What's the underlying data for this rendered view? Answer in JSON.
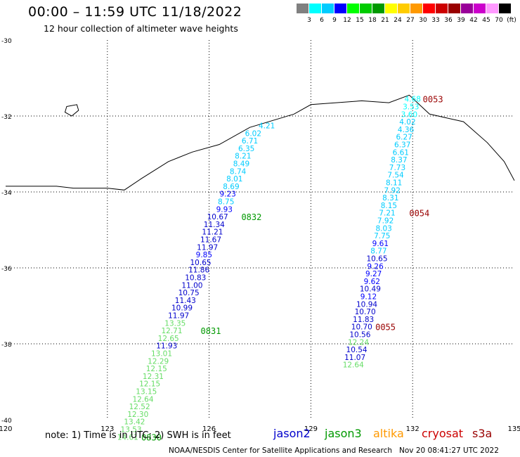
{
  "title": "00:00 – 11:59 UTC 11/18/2022",
  "subtitle": "12 hour collection of altimeter wave heights",
  "color_scale": {
    "colors": [
      "#808080",
      "#00ffff",
      "#00ccff",
      "#0000ff",
      "#00ff00",
      "#00cc00",
      "#009900",
      "#ffff00",
      "#ffcc00",
      "#ff9900",
      "#ff0000",
      "#cc0000",
      "#990000",
      "#990099",
      "#cc00cc",
      "#ff99ff",
      "#000000"
    ],
    "labels": [
      "3",
      "6",
      "9",
      "12",
      "15",
      "18",
      "21",
      "24",
      "27",
      "30",
      "33",
      "36",
      "39",
      "42",
      "45",
      "70"
    ],
    "unit": "(ft)"
  },
  "axes": {
    "lon_ticks": [
      "120",
      "123",
      "126",
      "129",
      "132",
      "135"
    ],
    "lat_ticks": [
      "-30",
      "-32",
      "-34",
      "-36",
      "-38",
      "-40"
    ]
  },
  "coastline": [
    [
      120,
      -33.85
    ],
    [
      121.5,
      -33.85
    ],
    [
      122,
      -33.9
    ],
    [
      123,
      -33.9
    ],
    [
      123.5,
      -33.95
    ],
    [
      124,
      -33.65
    ],
    [
      124.8,
      -33.2
    ],
    [
      125.5,
      -32.95
    ],
    [
      126.3,
      -32.75
    ],
    [
      127.2,
      -32.3
    ],
    [
      128.5,
      -31.95
    ],
    [
      129,
      -31.7
    ],
    [
      130.5,
      -31.6
    ],
    [
      131.3,
      -31.65
    ],
    [
      131.9,
      -31.45
    ],
    [
      132.5,
      -31.95
    ],
    [
      133.5,
      -32.15
    ],
    [
      134.2,
      -32.7
    ],
    [
      134.7,
      -33.2
    ],
    [
      135,
      -33.7
    ]
  ],
  "island": [
    [
      121.8,
      -31.75
    ],
    [
      122.1,
      -31.7
    ],
    [
      122.15,
      -31.85
    ],
    [
      121.95,
      -32
    ],
    [
      121.75,
      -31.9
    ]
  ],
  "tracks": [
    {
      "name": "jason3",
      "points": [
        {
          "lon": 127.7,
          "lat": -32.25,
          "v": "4.21",
          "c": "#00ccff"
        },
        {
          "lon": 127.3,
          "lat": -32.45,
          "v": "6.02",
          "c": "#00ccff"
        },
        {
          "lon": 127.2,
          "lat": -32.65,
          "v": "6.71",
          "c": "#00ccff"
        },
        {
          "lon": 127.1,
          "lat": -32.85,
          "v": "6.35",
          "c": "#00ccff"
        },
        {
          "lon": 127.0,
          "lat": -33.05,
          "v": "8.21",
          "c": "#00ccff"
        },
        {
          "lon": 126.95,
          "lat": -33.25,
          "v": "8.49",
          "c": "#00ccff"
        },
        {
          "lon": 126.85,
          "lat": -33.45,
          "v": "8.74",
          "c": "#00ccff"
        },
        {
          "lon": 126.75,
          "lat": -33.65,
          "v": "8.01",
          "c": "#00ccff"
        },
        {
          "lon": 126.65,
          "lat": -33.85,
          "v": "8.69",
          "c": "#00ccff"
        },
        {
          "lon": 126.55,
          "lat": -34.05,
          "v": "9.23",
          "c": "#0000ff"
        },
        {
          "lon": 126.5,
          "lat": -34.25,
          "v": "8.75",
          "c": "#00ccff"
        },
        {
          "lon": 126.45,
          "lat": -34.45,
          "v": "9.93",
          "c": "#0000ff"
        },
        {
          "lon": 126.25,
          "lat": -34.65,
          "v": "10.67",
          "c": "#0000cc"
        },
        {
          "lon": 126.15,
          "lat": -34.85,
          "v": "11.34",
          "c": "#0000cc"
        },
        {
          "lon": 126.1,
          "lat": -35.05,
          "v": "11.21",
          "c": "#0000cc"
        },
        {
          "lon": 126.05,
          "lat": -35.25,
          "v": "11.67",
          "c": "#0000cc"
        },
        {
          "lon": 125.95,
          "lat": -35.45,
          "v": "11.97",
          "c": "#0000cc"
        },
        {
          "lon": 125.85,
          "lat": -35.65,
          "v": "9.85",
          "c": "#0000ff"
        },
        {
          "lon": 125.75,
          "lat": -35.85,
          "v": "10.65",
          "c": "#0000cc"
        },
        {
          "lon": 125.7,
          "lat": -36.05,
          "v": "11.86",
          "c": "#0000cc"
        },
        {
          "lon": 125.6,
          "lat": -36.25,
          "v": "10.83",
          "c": "#0000cc"
        },
        {
          "lon": 125.5,
          "lat": -36.45,
          "v": "11.00",
          "c": "#0000cc"
        },
        {
          "lon": 125.4,
          "lat": -36.65,
          "v": "10.75",
          "c": "#0000cc"
        },
        {
          "lon": 125.3,
          "lat": -36.85,
          "v": "11.43",
          "c": "#0000cc"
        },
        {
          "lon": 125.2,
          "lat": -37.05,
          "v": "10.99",
          "c": "#0000cc"
        },
        {
          "lon": 125.1,
          "lat": -37.25,
          "v": "11.97",
          "c": "#0000cc"
        },
        {
          "lon": 125.0,
          "lat": -37.45,
          "v": "13.35",
          "c": "#66dd66"
        },
        {
          "lon": 124.9,
          "lat": -37.65,
          "v": "12.71",
          "c": "#66dd66"
        },
        {
          "lon": 124.8,
          "lat": -37.85,
          "v": "12.65",
          "c": "#66dd66"
        },
        {
          "lon": 124.75,
          "lat": -38.05,
          "v": "11.93",
          "c": "#0000cc"
        },
        {
          "lon": 124.6,
          "lat": -38.25,
          "v": "13.01",
          "c": "#66dd66"
        },
        {
          "lon": 124.5,
          "lat": -38.45,
          "v": "12.29",
          "c": "#66dd66"
        },
        {
          "lon": 124.45,
          "lat": -38.65,
          "v": "12.15",
          "c": "#66dd66"
        },
        {
          "lon": 124.35,
          "lat": -38.85,
          "v": "12.31",
          "c": "#66dd66"
        },
        {
          "lon": 124.25,
          "lat": -39.05,
          "v": "12.15",
          "c": "#66dd66"
        },
        {
          "lon": 124.15,
          "lat": -39.25,
          "v": "13.15",
          "c": "#66dd66"
        },
        {
          "lon": 124.05,
          "lat": -39.45,
          "v": "12.64",
          "c": "#66dd66"
        },
        {
          "lon": 123.95,
          "lat": -39.65,
          "v": "12.52",
          "c": "#66dd66"
        },
        {
          "lon": 123.9,
          "lat": -39.85,
          "v": "12.30",
          "c": "#66dd66"
        },
        {
          "lon": 123.8,
          "lat": -40.05,
          "v": "13.42",
          "c": "#66dd66"
        },
        {
          "lon": 123.7,
          "lat": -40.25,
          "v": "13.53",
          "c": "#66dd66"
        },
        {
          "lon": 123.6,
          "lat": -40.45,
          "v": "14.61",
          "c": "#66dd66"
        }
      ]
    },
    {
      "name": "jason2",
      "points": [
        {
          "lon": 132.0,
          "lat": -31.55,
          "v": "4.68",
          "c": "#00ffff"
        },
        {
          "lon": 131.95,
          "lat": -31.75,
          "v": "3.53",
          "c": "#00ffff"
        },
        {
          "lon": 131.9,
          "lat": -31.95,
          "v": "3.60",
          "c": "#00ffff"
        },
        {
          "lon": 131.85,
          "lat": -32.15,
          "v": "4.02",
          "c": "#00ccff"
        },
        {
          "lon": 131.8,
          "lat": -32.35,
          "v": "4.36",
          "c": "#00ccff"
        },
        {
          "lon": 131.75,
          "lat": -32.55,
          "v": "6.27",
          "c": "#00ccff"
        },
        {
          "lon": 131.7,
          "lat": -32.75,
          "v": "6.37",
          "c": "#00ccff"
        },
        {
          "lon": 131.65,
          "lat": -32.95,
          "v": "6.61",
          "c": "#00ccff"
        },
        {
          "lon": 131.6,
          "lat": -33.15,
          "v": "8.37",
          "c": "#00ccff"
        },
        {
          "lon": 131.55,
          "lat": -33.35,
          "v": "7.73",
          "c": "#00ccff"
        },
        {
          "lon": 131.5,
          "lat": -33.55,
          "v": "7.54",
          "c": "#00ccff"
        },
        {
          "lon": 131.45,
          "lat": -33.75,
          "v": "8.11",
          "c": "#00ccff"
        },
        {
          "lon": 131.4,
          "lat": -33.95,
          "v": "7.92",
          "c": "#00ccff"
        },
        {
          "lon": 131.35,
          "lat": -34.15,
          "v": "8.31",
          "c": "#00ccff"
        },
        {
          "lon": 131.3,
          "lat": -34.35,
          "v": "8.15",
          "c": "#00ccff"
        },
        {
          "lon": 131.25,
          "lat": -34.55,
          "v": "7.21",
          "c": "#00ccff"
        },
        {
          "lon": 131.2,
          "lat": -34.75,
          "v": "7.92",
          "c": "#00ccff"
        },
        {
          "lon": 131.15,
          "lat": -34.95,
          "v": "8.03",
          "c": "#00ccff"
        },
        {
          "lon": 131.1,
          "lat": -35.15,
          "v": "7.75",
          "c": "#00ccff"
        },
        {
          "lon": 131.05,
          "lat": -35.35,
          "v": "9.61",
          "c": "#0000ff"
        },
        {
          "lon": 131.0,
          "lat": -35.55,
          "v": "8.77",
          "c": "#00ccff"
        },
        {
          "lon": 130.95,
          "lat": -35.75,
          "v": "10.65",
          "c": "#0000cc"
        },
        {
          "lon": 130.9,
          "lat": -35.95,
          "v": "9.26",
          "c": "#0000ff"
        },
        {
          "lon": 130.85,
          "lat": -36.15,
          "v": "9.27",
          "c": "#0000ff"
        },
        {
          "lon": 130.8,
          "lat": -36.35,
          "v": "9.62",
          "c": "#0000ff"
        },
        {
          "lon": 130.75,
          "lat": -36.55,
          "v": "10.49",
          "c": "#0000cc"
        },
        {
          "lon": 130.7,
          "lat": -36.75,
          "v": "9.12",
          "c": "#0000ff"
        },
        {
          "lon": 130.65,
          "lat": -36.95,
          "v": "10.94",
          "c": "#0000cc"
        },
        {
          "lon": 130.6,
          "lat": -37.15,
          "v": "10.70",
          "c": "#0000cc"
        },
        {
          "lon": 130.55,
          "lat": -37.35,
          "v": "11.83",
          "c": "#0000cc"
        },
        {
          "lon": 130.5,
          "lat": -37.55,
          "v": "10.70",
          "c": "#0000cc"
        },
        {
          "lon": 130.45,
          "lat": -37.75,
          "v": "10.56",
          "c": "#0000cc"
        },
        {
          "lon": 130.4,
          "lat": -37.95,
          "v": "12.24",
          "c": "#66dd66"
        },
        {
          "lon": 130.35,
          "lat": -38.15,
          "v": "10.54",
          "c": "#0000cc"
        },
        {
          "lon": 130.3,
          "lat": -38.35,
          "v": "11.07",
          "c": "#0000cc"
        },
        {
          "lon": 130.25,
          "lat": -38.55,
          "v": "12.64",
          "c": "#66dd66"
        }
      ]
    }
  ],
  "time_labels": [
    {
      "text": "0053",
      "lon": 132.3,
      "lat": -31.55,
      "c": "#990000"
    },
    {
      "text": "0054",
      "lon": 131.9,
      "lat": -34.55,
      "c": "#990000"
    },
    {
      "text": "0055",
      "lon": 130.9,
      "lat": -37.55,
      "c": "#990000"
    },
    {
      "text": "0832",
      "lon": 126.95,
      "lat": -34.65,
      "c": "#009900"
    },
    {
      "text": "0831",
      "lon": 125.75,
      "lat": -37.65,
      "c": "#009900"
    },
    {
      "text": "0830",
      "lon": 124.0,
      "lat": -40.45,
      "c": "#009900"
    }
  ],
  "note": "note: 1) Time is in UTC; 2) SWH is in feet",
  "legend": [
    {
      "label": "jason2",
      "color": "#0000cc"
    },
    {
      "label": "jason3",
      "color": "#009900"
    },
    {
      "label": "altika",
      "color": "#ff9900"
    },
    {
      "label": "cryosat",
      "color": "#cc0000"
    },
    {
      "label": "s3a",
      "color": "#990000"
    }
  ],
  "credit": "NOAA/NESDIS Center for Satellite Applications and Research   Nov 20 08:41:27 UTC 2022"
}
